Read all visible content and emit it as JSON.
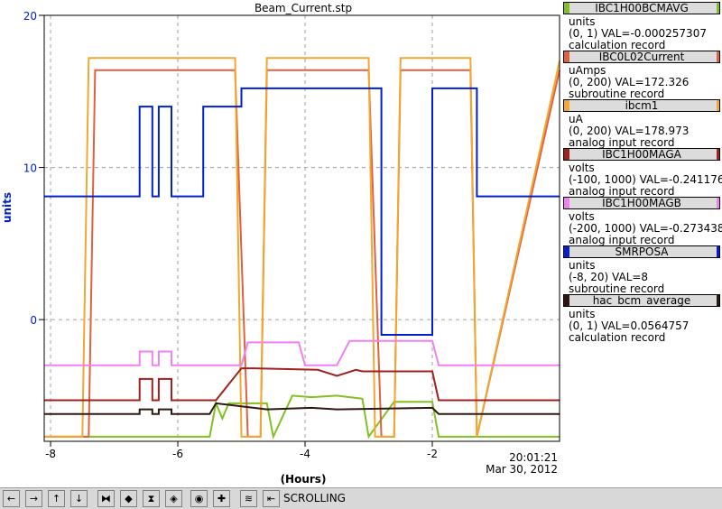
{
  "chart_data": {
    "type": "line",
    "title": "Beam_Current.stp",
    "xlabel": "(Hours)",
    "ylabel": "units",
    "xlim": [
      -8.1,
      0
    ],
    "ylim": [
      -8,
      20
    ],
    "x_ticks": [
      -8,
      -6,
      -4,
      -2
    ],
    "x_tick_labels": [
      "-8",
      "-6",
      "-4",
      "-2"
    ],
    "y_ticks": [
      0,
      10,
      20
    ],
    "y_tick_labels": [
      "0",
      "10",
      "20"
    ],
    "grid": true,
    "legend_position": "right",
    "time_label": "20:01:21",
    "date_label": "Mar 30, 2012",
    "series": [
      {
        "name": "IBC1H00BCMAVG",
        "color": "#80c020",
        "x": [
          -8.1,
          -5.5,
          -5.4,
          -5.3,
          -5.2,
          -4.6,
          -4.5,
          -4.2,
          -3.9,
          -3.5,
          -3.1,
          -3.0,
          -2.6,
          -2.0,
          -1.9,
          -1.3,
          0
        ],
        "y": [
          -7.7,
          -7.7,
          -5.5,
          -6.5,
          -5.5,
          -5.5,
          -7.7,
          -5.0,
          -5.1,
          -5.0,
          -5.2,
          -7.7,
          -5.4,
          -5.4,
          -7.7,
          -7.7,
          -7.7
        ]
      },
      {
        "name": "IBC0L02Current",
        "color": "#e06040",
        "x": [
          -8.1,
          -7.4,
          -7.3,
          -5.1,
          -4.9,
          -4.7,
          -4.6,
          -3.0,
          -2.8,
          -2.6,
          -2.5,
          -1.4,
          -1.3,
          0
        ],
        "y": [
          -7.7,
          -7.7,
          16.4,
          16.4,
          -7.7,
          -7.7,
          16.4,
          16.4,
          -7.7,
          -7.7,
          16.4,
          16.4,
          -7.7,
          16.4
        ]
      },
      {
        "name": "ibcm1",
        "color": "#f0a830",
        "x": [
          -8.1,
          -7.5,
          -7.4,
          -5.1,
          -5.0,
          -4.7,
          -4.6,
          -3.0,
          -2.9,
          -2.6,
          -2.5,
          -1.4,
          -1.3,
          0
        ],
        "y": [
          -7.7,
          -7.7,
          17.2,
          17.2,
          -7.7,
          -7.7,
          17.2,
          17.2,
          -7.7,
          -7.7,
          17.2,
          17.2,
          -7.7,
          17.0
        ]
      },
      {
        "name": "IBC1H00MAGA",
        "color": "#a02020",
        "x": [
          -8.1,
          -6.6,
          -6.6,
          -6.4,
          -6.4,
          -6.3,
          -6.3,
          -6.1,
          -6.1,
          -5.4,
          -5.0,
          -4.8,
          -3.8,
          -3.5,
          -3.2,
          -3.1,
          -2.0,
          -1.9,
          0
        ],
        "y": [
          -5.3,
          -5.3,
          -3.9,
          -3.9,
          -5.3,
          -5.3,
          -3.9,
          -3.9,
          -5.3,
          -5.3,
          -3.2,
          -3.2,
          -3.3,
          -3.7,
          -3.3,
          -3.4,
          -3.4,
          -5.3,
          -5.3
        ]
      },
      {
        "name": "IBC1H00MAGB",
        "color": "#f080f0",
        "x": [
          -8.1,
          -6.6,
          -6.6,
          -6.4,
          -6.4,
          -6.3,
          -6.3,
          -6.1,
          -6.1,
          -5.0,
          -4.9,
          -4.1,
          -4.0,
          -3.5,
          -3.3,
          -2.0,
          -1.9,
          -1.2,
          -1.1,
          0
        ],
        "y": [
          -3.0,
          -3.0,
          -2.1,
          -2.1,
          -3.0,
          -3.0,
          -2.1,
          -2.1,
          -3.0,
          -3.0,
          -1.5,
          -1.5,
          -3.0,
          -3.0,
          -1.4,
          -1.4,
          -3.0,
          -3.0,
          -3.0,
          -3.0
        ]
      },
      {
        "name": "SMRPOSA",
        "color": "#0020d0",
        "x": [
          -8.1,
          -6.6,
          -6.6,
          -6.4,
          -6.4,
          -6.3,
          -6.3,
          -6.1,
          -6.1,
          -5.6,
          -5.6,
          -5.0,
          -5.0,
          -2.8,
          -2.8,
          -2.0,
          -2.0,
          -1.3,
          -1.3,
          0
        ],
        "y": [
          8.1,
          8.1,
          14.0,
          14.0,
          8.1,
          8.1,
          14.0,
          14.0,
          8.1,
          8.1,
          14.0,
          14.0,
          15.2,
          15.2,
          -1.0,
          -1.0,
          15.2,
          15.2,
          8.1,
          8.1
        ]
      },
      {
        "name": "hac_bcm_average",
        "color": "#301810",
        "x": [
          -8.1,
          -6.6,
          -6.6,
          -6.4,
          -6.4,
          -6.3,
          -6.3,
          -6.1,
          -6.1,
          -5.5,
          -5.4,
          -5.0,
          -4.6,
          -3.9,
          -3.5,
          -2.0,
          -1.9,
          -1.1,
          0
        ],
        "y": [
          -6.2,
          -6.2,
          -5.9,
          -5.9,
          -6.2,
          -6.2,
          -5.9,
          -5.9,
          -6.2,
          -6.2,
          -5.5,
          -5.7,
          -5.9,
          -5.8,
          -5.9,
          -5.8,
          -6.2,
          -6.2,
          -6.2
        ]
      }
    ]
  },
  "legend": [
    {
      "name": "IBC1H00BCMAVG",
      "color": "#80c020",
      "units": "units",
      "range": "(0, 1) VAL=-0.000257307",
      "record": "calculation record"
    },
    {
      "name": "IBC0L02Current",
      "color": "#e06040",
      "units": "uAmps",
      "range": "(0, 200) VAL=172.326",
      "record": "subroutine record"
    },
    {
      "name": "ibcm1",
      "color": "#f0a830",
      "units": "uA",
      "range": "(0, 200) VAL=178.973",
      "record": "analog input record"
    },
    {
      "name": "IBC1H00MAGA",
      "color": "#a02020",
      "units": "volts",
      "range": "(-100, 1000) VAL=-0.241176",
      "record": "analog input record"
    },
    {
      "name": "IBC1H00MAGB",
      "color": "#f080f0",
      "units": "volts",
      "range": "(-200, 1000) VAL=-0.273438",
      "record": "analog input record"
    },
    {
      "name": "SMRPOSA",
      "color": "#0020d0",
      "units": "units",
      "range": "(-8, 20) VAL=8",
      "record": "subroutine record"
    },
    {
      "name": "hac_bcm_average",
      "color": "#301810",
      "units": "units",
      "range": "(0, 1) VAL=0.0564757",
      "record": "calculation record"
    }
  ],
  "toolbar": {
    "status": "SCROLLING",
    "buttons": [
      "left-arrow-icon",
      "right-arrow-icon",
      "up-arrow-icon",
      "down-arrow-icon",
      "zoom-in-horizontal-icon",
      "zoom-out-horizontal-icon",
      "zoom-in-vertical-icon",
      "zoom-out-vertical-icon",
      "center-icon",
      "add-icon",
      "autoscale-icon",
      "scroll-mode-icon"
    ],
    "button_glyphs": [
      "←",
      "→",
      "↑",
      "↓",
      "⧓",
      "◆",
      "⧗",
      "◈",
      "◉",
      "✚",
      "≋",
      "⇤"
    ]
  }
}
